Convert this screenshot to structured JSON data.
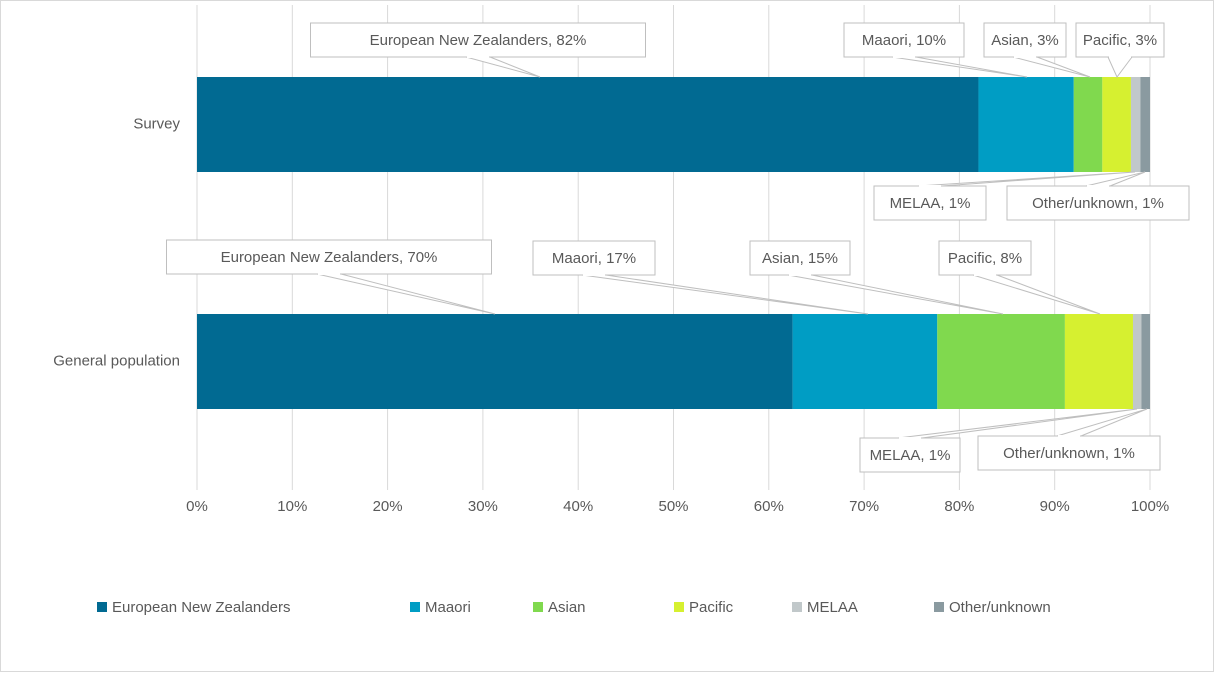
{
  "chart_data": {
    "type": "bar",
    "orientation": "horizontal",
    "stacked": "percent",
    "categories": [
      "Survey",
      "General population"
    ],
    "series": [
      {
        "name": "European New Zealanders",
        "color": "#016a92",
        "values": [
          82,
          70
        ],
        "value_labels": [
          "European New Zealanders, 82%",
          "European New Zealanders, 70%"
        ]
      },
      {
        "name": "Maaori",
        "color": "#009dc4",
        "values": [
          10,
          17
        ],
        "value_labels": [
          "Maaori, 10%",
          "Maaori, 17%"
        ]
      },
      {
        "name": "Asian",
        "color": "#80d94e",
        "values": [
          3,
          15
        ],
        "value_labels": [
          "Asian, 3%",
          "Asian, 15%"
        ]
      },
      {
        "name": "Pacific",
        "color": "#d6f030",
        "values": [
          3,
          8
        ],
        "value_labels": [
          "Pacific, 3%",
          "Pacific, 8%"
        ]
      },
      {
        "name": "MELAA",
        "color": "#c1c8ca",
        "values": [
          1,
          1
        ],
        "value_labels": [
          "MELAA, 1%",
          "MELAA, 1%"
        ]
      },
      {
        "name": "Other/unknown",
        "color": "#8a9aa0",
        "values": [
          1,
          1
        ],
        "value_labels": [
          "Other/unknown, 1%",
          "Other/unknown, 1%"
        ]
      }
    ],
    "xlim": [
      0,
      100
    ],
    "xticks": [
      {
        "value": 0,
        "label": "0%"
      },
      {
        "value": 10,
        "label": "10%"
      },
      {
        "value": 20,
        "label": "20%"
      },
      {
        "value": 30,
        "label": "30%"
      },
      {
        "value": 40,
        "label": "40%"
      },
      {
        "value": 50,
        "label": "50%"
      },
      {
        "value": 60,
        "label": "60%"
      },
      {
        "value": 70,
        "label": "70%"
      },
      {
        "value": 80,
        "label": "80%"
      },
      {
        "value": 90,
        "label": "90%"
      },
      {
        "value": 100,
        "label": "100%"
      }
    ],
    "grid": true,
    "legend": "bottom"
  }
}
